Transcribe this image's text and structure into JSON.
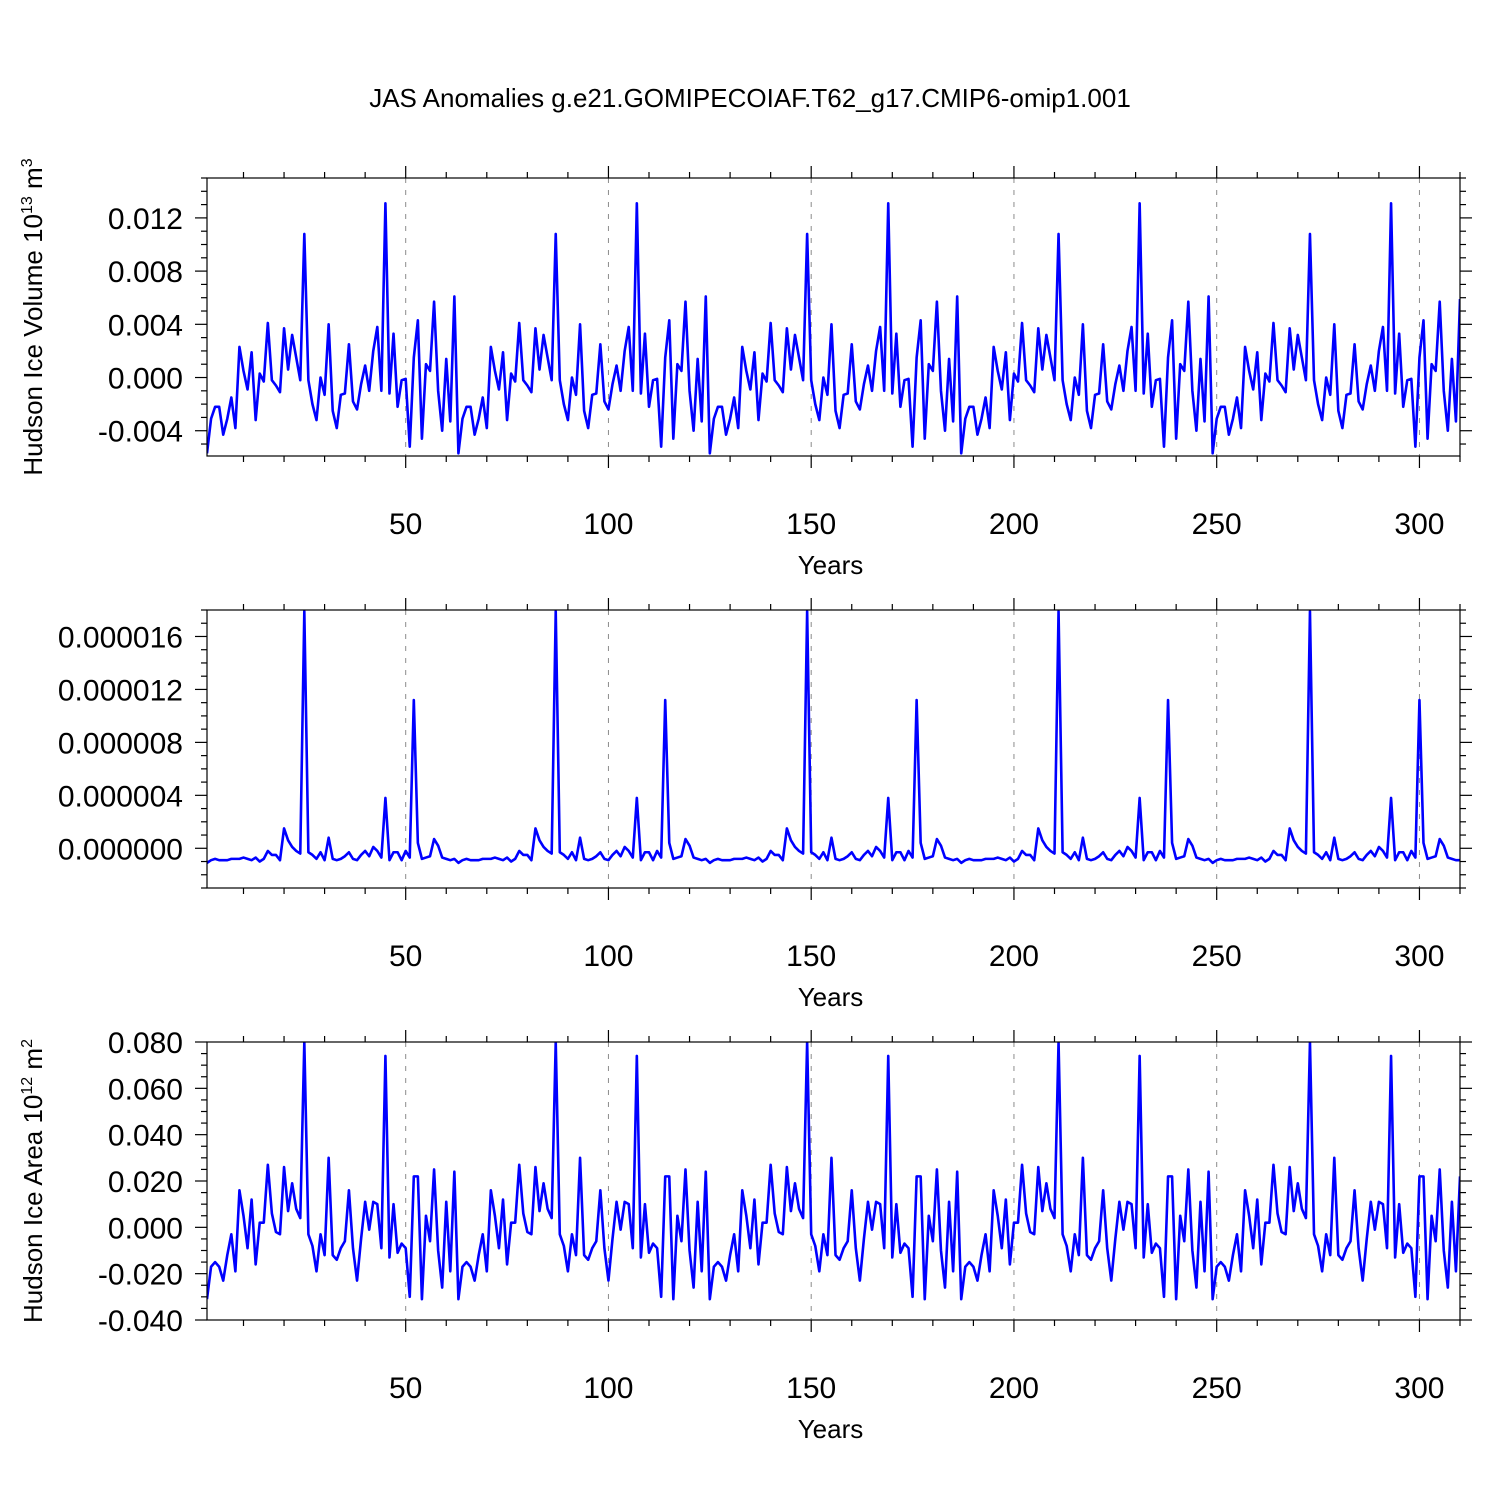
{
  "chart_data": {
    "type": "line",
    "title": "JAS Anomalies g.e21.GOMIPECOIAF.T62_g17.CMIP6-omip1.001",
    "line_color": "#0000ff",
    "grid": "vertical dashed at major x ticks",
    "xlim": [
      1,
      310
    ],
    "x_major_ticks": [
      50,
      100,
      150,
      200,
      250,
      300
    ],
    "x_tick_labels": [
      "50",
      "100",
      "150",
      "200",
      "250",
      "300"
    ],
    "period": 62,
    "panels": [
      {
        "xlabel": "Years",
        "ylabel": "Hudson Ice Volume 10",
        "ylabel_exp": "13",
        "ylabel_unit": " m",
        "ylabel_unit_exp": "3",
        "ylim": [
          -0.0059,
          0.015
        ],
        "y_ticks": [
          -0.004,
          0.0,
          0.004,
          0.008,
          0.012
        ],
        "y_tick_labels": [
          "-0.004",
          "0.000",
          "0.004",
          "0.008",
          "0.012"
        ],
        "cycle_values": [
          -0.0057,
          -0.0031,
          -0.0022,
          -0.0022,
          -0.0043,
          -0.0031,
          -0.0015,
          -0.0038,
          0.0023,
          0.0005,
          -0.0009,
          0.0019,
          -0.0032,
          0.0003,
          -0.0003,
          0.0041,
          -0.0002,
          -0.0006,
          -0.0011,
          0.0037,
          0.0006,
          0.0032,
          0.0015,
          -0.0002,
          0.0108,
          -0.0002,
          -0.002,
          -0.0032,
          0.0,
          -0.0013,
          0.004,
          -0.0025,
          -0.0038,
          -0.0013,
          -0.0012,
          0.0025,
          -0.0018,
          -0.0024,
          -0.0005,
          0.0009,
          -0.001,
          0.002,
          0.0038,
          -0.001,
          0.0131,
          -0.0012,
          0.0033,
          -0.0022,
          -0.0002,
          -0.0001,
          -0.0052,
          0.0015,
          0.0043,
          -0.0046,
          0.001,
          0.0005,
          0.0057,
          -0.001,
          -0.004,
          0.0014,
          -0.0033,
          0.0061
        ],
        "first_value": -0.0057,
        "last_value": 0.0059
      },
      {
        "xlabel": "Years",
        "ylabel": "",
        "ylim": [
          -3e-06,
          1.8e-05
        ],
        "y_ticks": [
          0.0,
          4e-06,
          8e-06,
          1.2e-05,
          1.6e-05
        ],
        "y_tick_labels": [
          "0.000000",
          "0.000004",
          "0.000008",
          "0.000012",
          "0.000016"
        ],
        "cycle_values": [
          -1.1e-06,
          -9e-07,
          -8e-07,
          -9e-07,
          -9e-07,
          -9e-07,
          -8e-07,
          -8e-07,
          -8e-07,
          -7e-07,
          -8e-07,
          -9e-07,
          -7e-07,
          -1e-06,
          -8e-07,
          -2e-07,
          -5e-07,
          -5e-07,
          -9e-07,
          1.5e-06,
          6e-07,
          1e-07,
          -2e-07,
          -4e-07,
          1.79e-05,
          -3e-07,
          -5e-07,
          -8e-07,
          -3e-07,
          -9e-07,
          8e-07,
          -8e-07,
          -9e-07,
          -8e-07,
          -6e-07,
          -3e-07,
          -8e-07,
          -9e-07,
          -5e-07,
          -2e-07,
          -6e-07,
          1e-07,
          -2e-07,
          -7e-07,
          3.8e-06,
          -9e-07,
          -3e-07,
          -3e-07,
          -9e-07,
          -2e-07,
          -7e-07,
          1.12e-05,
          4e-07,
          -8e-07,
          -7e-07,
          -6e-07,
          7e-07,
          2e-07,
          -7e-07,
          -8e-07,
          -9e-07,
          -8e-07
        ],
        "first_value": -1.1e-06,
        "last_value": -9e-07
      },
      {
        "xlabel": "Years",
        "ylabel": "Hudson Ice Area 10",
        "ylabel_exp": "12",
        "ylabel_unit": " m",
        "ylabel_unit_exp": "2",
        "ylim": [
          -0.04,
          0.08
        ],
        "y_ticks": [
          -0.04,
          -0.02,
          0.0,
          0.02,
          0.04,
          0.06,
          0.08
        ],
        "y_tick_labels": [
          "-0.040",
          "-0.020",
          "0.000",
          "0.020",
          "0.040",
          "0.060",
          "0.080"
        ],
        "cycle_values": [
          -0.031,
          -0.017,
          -0.015,
          -0.017,
          -0.023,
          -0.012,
          -0.003,
          -0.019,
          0.016,
          0.005,
          -0.009,
          0.012,
          -0.016,
          0.002,
          0.002,
          0.027,
          0.006,
          -0.002,
          -0.003,
          0.026,
          0.007,
          0.019,
          0.008,
          0.004,
          0.08,
          -0.003,
          -0.008,
          -0.019,
          -0.003,
          -0.012,
          0.03,
          -0.012,
          -0.014,
          -0.009,
          -0.006,
          0.016,
          -0.009,
          -0.023,
          -0.005,
          0.011,
          -0.001,
          0.011,
          0.01,
          -0.009,
          0.074,
          -0.013,
          0.01,
          -0.011,
          -0.007,
          -0.009,
          -0.03,
          0.022,
          0.022,
          -0.031,
          0.005,
          -0.006,
          0.025,
          -0.01,
          -0.026,
          0.011,
          -0.019,
          0.024
        ],
        "first_value": -0.031,
        "last_value": 0.022
      }
    ]
  }
}
